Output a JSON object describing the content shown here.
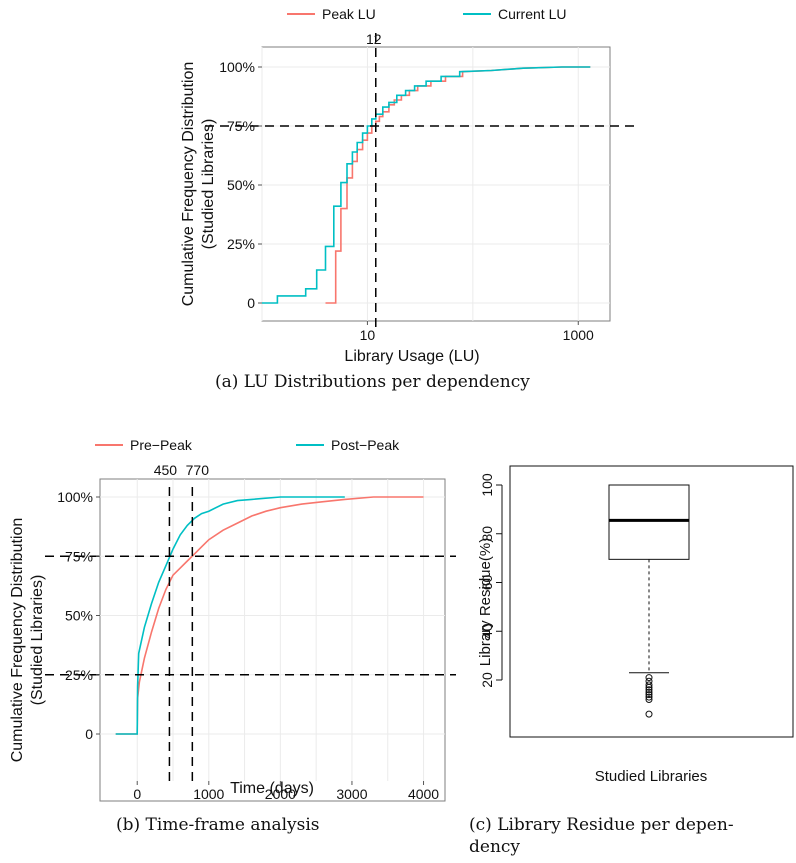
{
  "chart_data": [
    {
      "id": "a",
      "type": "line",
      "caption": "(a) LU Distributions per dependency",
      "xlabel": "Library Usage (LU)",
      "ylabel_line1": "Cumulative Frequency Distribution",
      "ylabel_line2": "(Studied Libraries)",
      "x_scale": "log",
      "x_ticks": [
        {
          "value": 10,
          "label": "10"
        },
        {
          "value": 1000,
          "label": "1000"
        }
      ],
      "y_ticks": [
        {
          "value": 0,
          "label": "0"
        },
        {
          "value": 0.25,
          "label": "25%"
        },
        {
          "value": 0.5,
          "label": "50%"
        },
        {
          "value": 0.75,
          "label": "75%"
        },
        {
          "value": 1,
          "label": "100%"
        }
      ],
      "legend_position": "top",
      "vline": {
        "x": 12,
        "label": "12"
      },
      "hlines": [
        0.75
      ],
      "series": [
        {
          "name": "Peak LU",
          "color": "#f8766d",
          "points": [
            [
              4,
              0
            ],
            [
              5,
              0
            ],
            [
              5,
              0.22
            ],
            [
              5.6,
              0.22
            ],
            [
              5.6,
              0.4
            ],
            [
              6.4,
              0.4
            ],
            [
              6.4,
              0.53
            ],
            [
              7.2,
              0.53
            ],
            [
              7.2,
              0.6
            ],
            [
              8,
              0.6
            ],
            [
              8,
              0.65
            ],
            [
              9,
              0.65
            ],
            [
              9,
              0.69
            ],
            [
              10,
              0.69
            ],
            [
              10,
              0.72
            ],
            [
              11,
              0.72
            ],
            [
              11,
              0.75
            ],
            [
              12,
              0.75
            ],
            [
              12,
              0.77
            ],
            [
              13,
              0.77
            ],
            [
              13,
              0.79
            ],
            [
              14,
              0.79
            ],
            [
              14,
              0.81
            ],
            [
              16,
              0.81
            ],
            [
              16,
              0.84
            ],
            [
              18,
              0.84
            ],
            [
              18,
              0.86
            ],
            [
              21,
              0.86
            ],
            [
              21,
              0.88
            ],
            [
              25,
              0.88
            ],
            [
              25,
              0.9
            ],
            [
              30,
              0.9
            ],
            [
              30,
              0.92
            ],
            [
              40,
              0.92
            ],
            [
              40,
              0.94
            ],
            [
              55,
              0.94
            ],
            [
              55,
              0.96
            ],
            [
              80,
              0.96
            ],
            [
              80,
              0.98
            ],
            [
              150,
              0.985
            ],
            [
              300,
              0.995
            ],
            [
              700,
              1.0
            ],
            [
              1300,
              1.0
            ]
          ]
        },
        {
          "name": "Current LU",
          "color": "#00bfc4",
          "points": [
            [
              1,
              0
            ],
            [
              1.4,
              0
            ],
            [
              1.4,
              0.03
            ],
            [
              2.6,
              0.03
            ],
            [
              2.6,
              0.06
            ],
            [
              3.3,
              0.06
            ],
            [
              3.3,
              0.14
            ],
            [
              4,
              0.14
            ],
            [
              4,
              0.24
            ],
            [
              4.8,
              0.24
            ],
            [
              4.8,
              0.41
            ],
            [
              5.6,
              0.41
            ],
            [
              5.6,
              0.51
            ],
            [
              6.4,
              0.51
            ],
            [
              6.4,
              0.59
            ],
            [
              7.2,
              0.59
            ],
            [
              7.2,
              0.64
            ],
            [
              8,
              0.64
            ],
            [
              8,
              0.68
            ],
            [
              9,
              0.68
            ],
            [
              9,
              0.72
            ],
            [
              10,
              0.72
            ],
            [
              10,
              0.75
            ],
            [
              11,
              0.75
            ],
            [
              11,
              0.78
            ],
            [
              12,
              0.78
            ],
            [
              12,
              0.8
            ],
            [
              14,
              0.8
            ],
            [
              14,
              0.83
            ],
            [
              16,
              0.83
            ],
            [
              16,
              0.85
            ],
            [
              19,
              0.85
            ],
            [
              19,
              0.88
            ],
            [
              23,
              0.88
            ],
            [
              23,
              0.9
            ],
            [
              28,
              0.9
            ],
            [
              28,
              0.92
            ],
            [
              36,
              0.92
            ],
            [
              36,
              0.94
            ],
            [
              50,
              0.94
            ],
            [
              50,
              0.96
            ],
            [
              75,
              0.96
            ],
            [
              75,
              0.98
            ],
            [
              150,
              0.985
            ],
            [
              300,
              0.995
            ],
            [
              700,
              1.0
            ],
            [
              1300,
              1.0
            ]
          ]
        }
      ]
    },
    {
      "id": "b",
      "type": "line",
      "caption": "(b) Time-frame analysis",
      "xlabel": "Time (days)",
      "ylabel_line1": "Cumulative Frequency Distribution",
      "ylabel_line2": "(Studied Libraries)",
      "x_ticks": [
        {
          "value": 0,
          "label": "0"
        },
        {
          "value": 1000,
          "label": "1000"
        },
        {
          "value": 2000,
          "label": "2000"
        },
        {
          "value": 3000,
          "label": "3000"
        },
        {
          "value": 4000,
          "label": "4000"
        }
      ],
      "y_ticks": [
        {
          "value": 0,
          "label": "0"
        },
        {
          "value": 0.25,
          "label": "25%"
        },
        {
          "value": 0.5,
          "label": "50%"
        },
        {
          "value": 0.75,
          "label": "75%"
        },
        {
          "value": 1,
          "label": "100%"
        }
      ],
      "legend_position": "top",
      "vlines": [
        {
          "x": 450,
          "label": "450"
        },
        {
          "x": 770,
          "label": "770"
        }
      ],
      "hlines": [
        0.75,
        0.25
      ],
      "series": [
        {
          "name": "Pre−Peak",
          "color": "#f8766d",
          "points": [
            [
              -300,
              0
            ],
            [
              0,
              0
            ],
            [
              5,
              0.15
            ],
            [
              30,
              0.22
            ],
            [
              100,
              0.32
            ],
            [
              200,
              0.43
            ],
            [
              300,
              0.53
            ],
            [
              400,
              0.61
            ],
            [
              500,
              0.67
            ],
            [
              600,
              0.7
            ],
            [
              700,
              0.73
            ],
            [
              800,
              0.76
            ],
            [
              900,
              0.79
            ],
            [
              1000,
              0.82
            ],
            [
              1200,
              0.86
            ],
            [
              1400,
              0.89
            ],
            [
              1600,
              0.92
            ],
            [
              1800,
              0.94
            ],
            [
              2000,
              0.955
            ],
            [
              2300,
              0.97
            ],
            [
              2600,
              0.98
            ],
            [
              2900,
              0.99
            ],
            [
              3300,
              1.0
            ],
            [
              4000,
              1.0
            ]
          ]
        },
        {
          "name": "Post−Peak",
          "color": "#00bfc4",
          "points": [
            [
              -300,
              0
            ],
            [
              0,
              0
            ],
            [
              5,
              0.2
            ],
            [
              20,
              0.34
            ],
            [
              100,
              0.45
            ],
            [
              200,
              0.55
            ],
            [
              300,
              0.64
            ],
            [
              400,
              0.71
            ],
            [
              500,
              0.78
            ],
            [
              600,
              0.84
            ],
            [
              700,
              0.88
            ],
            [
              800,
              0.91
            ],
            [
              900,
              0.93
            ],
            [
              1000,
              0.94
            ],
            [
              1200,
              0.97
            ],
            [
              1400,
              0.985
            ],
            [
              1600,
              0.99
            ],
            [
              2000,
              1.0
            ],
            [
              2900,
              1.0
            ]
          ]
        }
      ]
    },
    {
      "id": "c",
      "type": "box",
      "caption_line1": "(c) Library Residue per depen-",
      "caption_line2": "dency",
      "xlabel": "Studied Libraries",
      "ylabel": "Library Residue(%)",
      "y_ticks": [
        {
          "value": 20,
          "label": "20"
        },
        {
          "value": 40,
          "label": "40"
        },
        {
          "value": 60,
          "label": "60"
        },
        {
          "value": 80,
          "label": "80"
        },
        {
          "value": 100,
          "label": "100"
        }
      ],
      "box": {
        "lower_whisker": 23,
        "q1": 69.5,
        "median": 85.5,
        "q3": 100,
        "upper_whisker": 100
      },
      "outliers": [
        21,
        19.5,
        18,
        17,
        16,
        15,
        14,
        13,
        12,
        6
      ]
    }
  ]
}
